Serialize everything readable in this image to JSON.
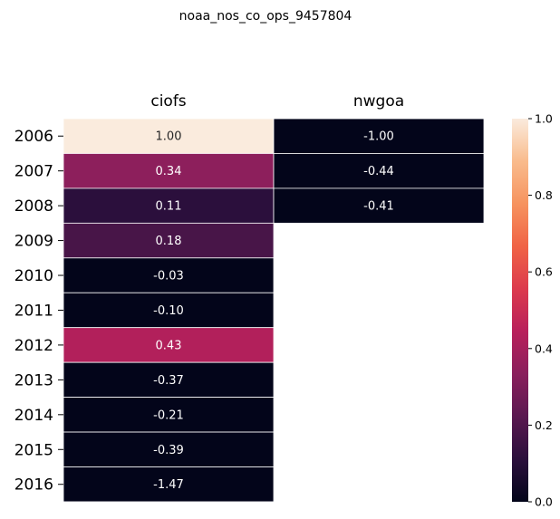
{
  "chart_data": {
    "type": "heatmap",
    "title": "noaa_nos_co_ops_9457804",
    "columns": [
      "ciofs",
      "nwgoa"
    ],
    "rows": [
      "2006",
      "2007",
      "2008",
      "2009",
      "2010",
      "2011",
      "2012",
      "2013",
      "2014",
      "2015",
      "2016"
    ],
    "values": [
      [
        1.0,
        -1.0
      ],
      [
        0.34,
        -0.44
      ],
      [
        0.11,
        -0.41
      ],
      [
        0.18,
        null
      ],
      [
        -0.03,
        null
      ],
      [
        -0.1,
        null
      ],
      [
        0.43,
        null
      ],
      [
        -0.37,
        null
      ],
      [
        -0.21,
        null
      ],
      [
        -0.39,
        null
      ],
      [
        -1.47,
        null
      ]
    ],
    "value_labels": [
      [
        "1.00",
        "-1.00"
      ],
      [
        "0.34",
        "-0.44"
      ],
      [
        "0.11",
        "-0.41"
      ],
      [
        "0.18",
        ""
      ],
      [
        "-0.03",
        ""
      ],
      [
        "-0.10",
        ""
      ],
      [
        "0.43",
        ""
      ],
      [
        "-0.37",
        ""
      ],
      [
        "-0.21",
        ""
      ],
      [
        "-0.39",
        ""
      ],
      [
        "-1.47",
        ""
      ]
    ],
    "colorbar": {
      "min": 0.0,
      "max": 1.0,
      "ticks": [
        "0.0",
        "0.2",
        "0.4",
        "0.6",
        "0.8",
        "1.0"
      ],
      "colormap": "rocket",
      "stops": [
        "#03051a",
        "#2b0f3c",
        "#5a1850",
        "#8a1f5c",
        "#b8205b",
        "#dc3a4d",
        "#f06345",
        "#f6935f",
        "#f9bb8c",
        "#faebdd"
      ]
    },
    "grid": true,
    "legend": "colorbar-right"
  }
}
